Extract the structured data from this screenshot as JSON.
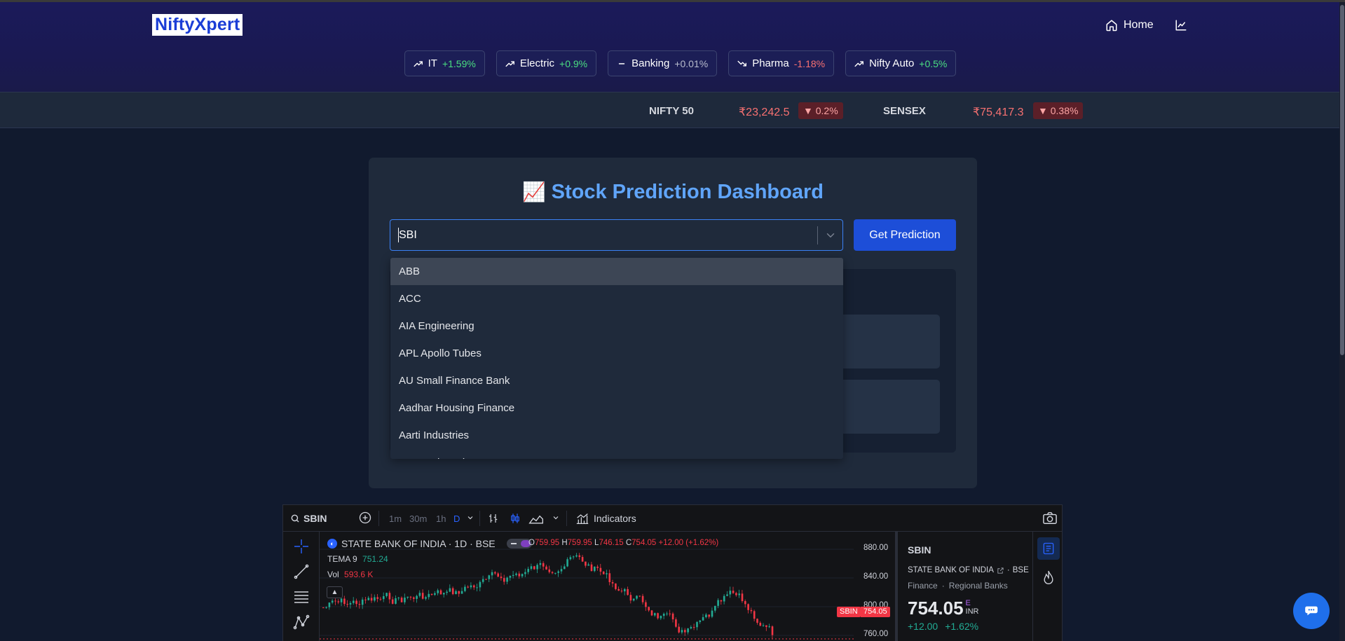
{
  "header": {
    "logo": "NiftyXpert",
    "nav": {
      "home": "Home"
    },
    "sectors": [
      {
        "name": "IT",
        "change": "+1.59%",
        "trend": "up"
      },
      {
        "name": "Electric",
        "change": "+0.9%",
        "trend": "up"
      },
      {
        "name": "Banking",
        "change": "+0.01%",
        "trend": "flat"
      },
      {
        "name": "Pharma",
        "change": "-1.18%",
        "trend": "down"
      },
      {
        "name": "Nifty Auto",
        "change": "+0.5%",
        "trend": "up"
      }
    ]
  },
  "ticker": [
    {
      "name": "NIFTY 50",
      "price": "₹23,242.5",
      "change": "0.2%"
    },
    {
      "name": "SENSEX",
      "price": "₹75,417.3",
      "change": "0.38%"
    }
  ],
  "dashboard": {
    "emoji": "📈",
    "title": "Stock Prediction Dashboard",
    "search_value": "SBI",
    "button": "Get Prediction",
    "options": [
      "ABB",
      "ACC",
      "AIA Engineering",
      "APL Apollo Tubes",
      "AU Small Finance Bank",
      "Aadhar Housing Finance",
      "Aarti Industries",
      "Aavas Financiers"
    ]
  },
  "widget": {
    "symbol": "SBIN",
    "timeframes": [
      "1m",
      "30m",
      "1h",
      "D"
    ],
    "active_timeframe": "D",
    "indicators_label": "Indicators",
    "instrument": "STATE BANK OF INDIA · 1D · BSE",
    "ohlc": {
      "o": "759.95",
      "h": "759.95",
      "l": "746.15",
      "c": "754.05",
      "change": "+12.00 (+1.62%)"
    },
    "tema": {
      "label": "TEMA 9",
      "value": "751.24"
    },
    "volume": {
      "label": "Vol",
      "value": "593.6 K"
    },
    "price_axis": [
      "880.00",
      "840.00",
      "800.00",
      "760.00"
    ],
    "last_price_tag": {
      "symbol": "SBIN",
      "price": "754.05"
    },
    "detail": {
      "symbol": "SBIN",
      "name": "STATE BANK OF INDIA",
      "exchange": "BSE",
      "sector": "Finance",
      "industry": "Regional Banks",
      "price": "754.05",
      "price_flag": "E",
      "currency": "INR",
      "change": "+12.00",
      "change_pct": "+1.62%"
    }
  },
  "colors": {
    "up": "#4ade80",
    "down": "#f87171",
    "accent": "#60a5fa",
    "button": "#1d4ed8"
  }
}
